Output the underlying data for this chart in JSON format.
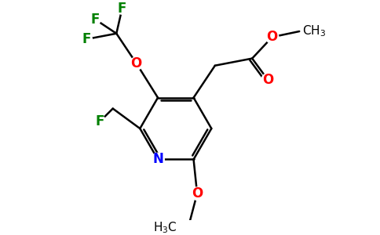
{
  "background_color": "#ffffff",
  "atom_colors": {
    "C": "#000000",
    "N": "#0000ff",
    "O": "#ff0000",
    "F": "#008000"
  },
  "figsize": [
    4.84,
    3.0
  ],
  "dpi": 100,
  "lw": 1.8,
  "fs": 11
}
